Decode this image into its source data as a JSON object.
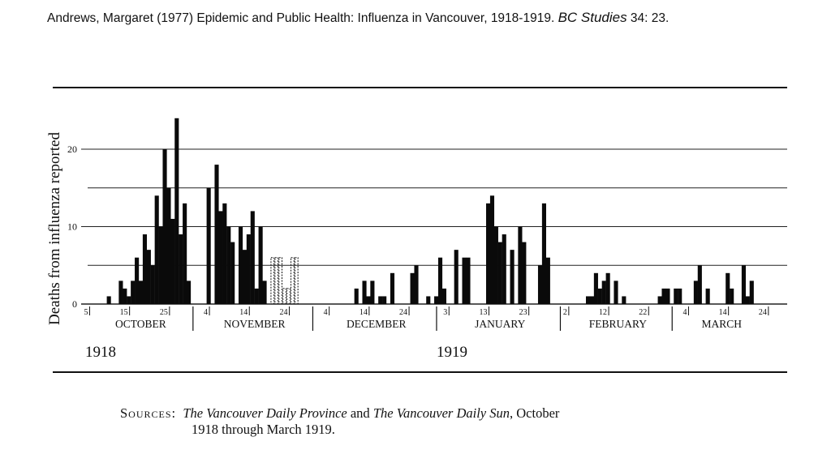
{
  "citation": {
    "text": "Andrews, Margaret (1977) Epidemic and Public Health: Influenza in Vancouver, 1918-1919.",
    "journal": "BC Studies",
    "issue": "34: 23."
  },
  "sources": {
    "label": "Sources:",
    "paper1": "The Vancouver Daily Province",
    "and": "and",
    "paper2": "The Vancouver Daily Sun",
    "tail1": ", October",
    "line2": "1918 through March 1919."
  },
  "chart_data": {
    "type": "bar",
    "title": "",
    "xlabel": "",
    "ylabel": "Deaths from influenza reported",
    "ylim": [
      0,
      25
    ],
    "yticks": [
      0,
      10,
      20
    ],
    "gridlines": [
      0,
      5,
      10,
      15,
      20
    ],
    "start_date": "1918-10-05",
    "end_date": "1919-03-24",
    "years": [
      {
        "label": "1918",
        "date": "1918-10-05"
      },
      {
        "label": "1919",
        "date": "1919-01-01"
      }
    ],
    "months": [
      {
        "label": "OCTOBER",
        "start": "1918-10-05",
        "end": "1918-11-01"
      },
      {
        "label": "NOVEMBER",
        "start": "1918-11-01",
        "end": "1918-12-01"
      },
      {
        "label": "DECEMBER",
        "start": "1918-12-01",
        "end": "1919-01-01"
      },
      {
        "label": "JANUARY",
        "start": "1919-01-01",
        "end": "1919-02-01"
      },
      {
        "label": "FEBRUARY",
        "start": "1919-02-01",
        "end": "1919-03-01"
      },
      {
        "label": "MARCH",
        "start": "1919-03-01",
        "end": "1919-03-25"
      }
    ],
    "xticks": [
      {
        "label": "5",
        "date": "1918-10-05"
      },
      {
        "label": "15",
        "date": "1918-10-15"
      },
      {
        "label": "25",
        "date": "1918-10-25"
      },
      {
        "label": "4",
        "date": "1918-11-04"
      },
      {
        "label": "14",
        "date": "1918-11-14"
      },
      {
        "label": "24",
        "date": "1918-11-24"
      },
      {
        "label": "4",
        "date": "1918-12-04"
      },
      {
        "label": "14",
        "date": "1918-12-14"
      },
      {
        "label": "24",
        "date": "1918-12-24"
      },
      {
        "label": "3",
        "date": "1919-01-03"
      },
      {
        "label": "13",
        "date": "1919-01-13"
      },
      {
        "label": "23",
        "date": "1919-01-23"
      },
      {
        "label": "2",
        "date": "1919-02-02"
      },
      {
        "label": "12",
        "date": "1919-02-12"
      },
      {
        "label": "22",
        "date": "1919-02-22"
      },
      {
        "label": "4",
        "date": "1919-03-04"
      },
      {
        "label": "14",
        "date": "1919-03-14"
      },
      {
        "label": "24",
        "date": "1919-03-24"
      }
    ],
    "series": [
      {
        "name": "Deaths from influenza reported",
        "points": [
          {
            "date": "1918-10-10",
            "value": 1
          },
          {
            "date": "1918-10-13",
            "value": 3
          },
          {
            "date": "1918-10-14",
            "value": 2
          },
          {
            "date": "1918-10-15",
            "value": 1
          },
          {
            "date": "1918-10-16",
            "value": 3
          },
          {
            "date": "1918-10-17",
            "value": 6
          },
          {
            "date": "1918-10-18",
            "value": 3
          },
          {
            "date": "1918-10-19",
            "value": 9
          },
          {
            "date": "1918-10-20",
            "value": 7
          },
          {
            "date": "1918-10-21",
            "value": 5
          },
          {
            "date": "1918-10-22",
            "value": 14
          },
          {
            "date": "1918-10-23",
            "value": 10
          },
          {
            "date": "1918-10-24",
            "value": 20
          },
          {
            "date": "1918-10-25",
            "value": 15
          },
          {
            "date": "1918-10-26",
            "value": 11
          },
          {
            "date": "1918-10-27",
            "value": 24
          },
          {
            "date": "1918-10-28",
            "value": 9
          },
          {
            "date": "1918-10-29",
            "value": 13
          },
          {
            "date": "1918-10-30",
            "value": 3
          },
          {
            "date": "1918-11-04",
            "value": 15
          },
          {
            "date": "1918-11-06",
            "value": 18
          },
          {
            "date": "1918-11-07",
            "value": 12
          },
          {
            "date": "1918-11-08",
            "value": 13
          },
          {
            "date": "1918-11-09",
            "value": 10
          },
          {
            "date": "1918-11-10",
            "value": 8
          },
          {
            "date": "1918-11-12",
            "value": 10
          },
          {
            "date": "1918-11-13",
            "value": 7
          },
          {
            "date": "1918-11-14",
            "value": 9
          },
          {
            "date": "1918-11-15",
            "value": 12
          },
          {
            "date": "1918-11-16",
            "value": 2
          },
          {
            "date": "1918-11-17",
            "value": 10
          },
          {
            "date": "1918-11-18",
            "value": 3
          },
          {
            "date": "1918-11-20",
            "value": 6,
            "estimated": true
          },
          {
            "date": "1918-11-21",
            "value": 6,
            "estimated": true
          },
          {
            "date": "1918-11-22",
            "value": 6,
            "estimated": true
          },
          {
            "date": "1918-11-23",
            "value": 2,
            "estimated": true
          },
          {
            "date": "1918-11-24",
            "value": 2,
            "estimated": true
          },
          {
            "date": "1918-11-25",
            "value": 6,
            "estimated": true
          },
          {
            "date": "1918-11-26",
            "value": 6,
            "estimated": true
          },
          {
            "date": "1918-12-11",
            "value": 2
          },
          {
            "date": "1918-12-13",
            "value": 3
          },
          {
            "date": "1918-12-14",
            "value": 1
          },
          {
            "date": "1918-12-15",
            "value": 3
          },
          {
            "date": "1918-12-17",
            "value": 1
          },
          {
            "date": "1918-12-18",
            "value": 1
          },
          {
            "date": "1918-12-20",
            "value": 4
          },
          {
            "date": "1918-12-25",
            "value": 4
          },
          {
            "date": "1918-12-26",
            "value": 5
          },
          {
            "date": "1918-12-29",
            "value": 1
          },
          {
            "date": "1918-12-31",
            "value": 1
          },
          {
            "date": "1919-01-01",
            "value": 6
          },
          {
            "date": "1919-01-02",
            "value": 2
          },
          {
            "date": "1919-01-05",
            "value": 7
          },
          {
            "date": "1919-01-07",
            "value": 6
          },
          {
            "date": "1919-01-08",
            "value": 6
          },
          {
            "date": "1919-01-13",
            "value": 13
          },
          {
            "date": "1919-01-14",
            "value": 14
          },
          {
            "date": "1919-01-15",
            "value": 10
          },
          {
            "date": "1919-01-16",
            "value": 8
          },
          {
            "date": "1919-01-17",
            "value": 9
          },
          {
            "date": "1919-01-19",
            "value": 7
          },
          {
            "date": "1919-01-21",
            "value": 10
          },
          {
            "date": "1919-01-22",
            "value": 8
          },
          {
            "date": "1919-01-26",
            "value": 5
          },
          {
            "date": "1919-01-27",
            "value": 13
          },
          {
            "date": "1919-01-28",
            "value": 6
          },
          {
            "date": "1919-02-07",
            "value": 1
          },
          {
            "date": "1919-02-08",
            "value": 1
          },
          {
            "date": "1919-02-09",
            "value": 4
          },
          {
            "date": "1919-02-10",
            "value": 2
          },
          {
            "date": "1919-02-11",
            "value": 3
          },
          {
            "date": "1919-02-12",
            "value": 4
          },
          {
            "date": "1919-02-14",
            "value": 3
          },
          {
            "date": "1919-02-16",
            "value": 1
          },
          {
            "date": "1919-02-25",
            "value": 1
          },
          {
            "date": "1919-02-26",
            "value": 2
          },
          {
            "date": "1919-02-27",
            "value": 2
          },
          {
            "date": "1919-03-01",
            "value": 2
          },
          {
            "date": "1919-03-02",
            "value": 2
          },
          {
            "date": "1919-03-06",
            "value": 3
          },
          {
            "date": "1919-03-07",
            "value": 5
          },
          {
            "date": "1919-03-09",
            "value": 2
          },
          {
            "date": "1919-03-14",
            "value": 4
          },
          {
            "date": "1919-03-15",
            "value": 2
          },
          {
            "date": "1919-03-18",
            "value": 5
          },
          {
            "date": "1919-03-19",
            "value": 1
          },
          {
            "date": "1919-03-20",
            "value": 3
          }
        ]
      }
    ]
  }
}
